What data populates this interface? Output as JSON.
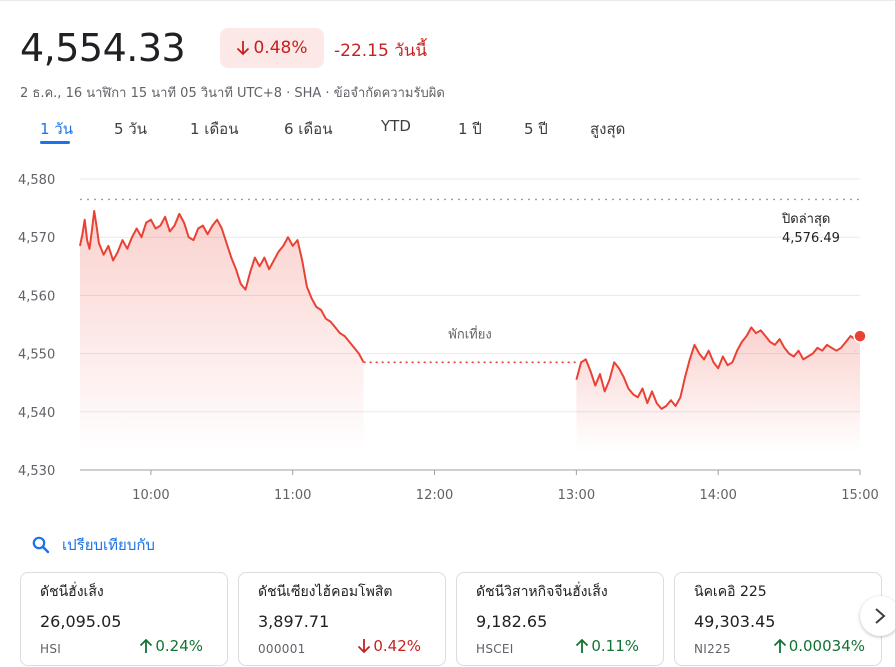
{
  "header": {
    "price": "4,554.33",
    "change_pct": "0.48%",
    "change_abs": "-22.15 วันนี้",
    "subline": "2 ธ.ค., 16 นาฬิกา 15 นาที 05 วินาที UTC+8 · SHA · ข้อจำกัดความรับผิด"
  },
  "tabs": [
    {
      "label": "1 วัน",
      "active": true
    },
    {
      "label": "5 วัน"
    },
    {
      "label": "1 เดือน"
    },
    {
      "label": "6 เดือน"
    },
    {
      "label": "YTD"
    },
    {
      "label": "1 ปี"
    },
    {
      "label": "5 ปี"
    },
    {
      "label": "สูงสุด"
    }
  ],
  "chart_data": {
    "type": "line",
    "ylim": [
      4530,
      4580
    ],
    "yticks": [
      "4,580",
      "4,570",
      "4,560",
      "4,550",
      "4,540",
      "4,530"
    ],
    "ytick_values": [
      4580,
      4570,
      4560,
      4550,
      4540,
      4530
    ],
    "xlim": [
      "09:30",
      "15:00"
    ],
    "xticks": [
      "10:00",
      "11:00",
      "12:00",
      "13:00",
      "14:00",
      "15:00"
    ],
    "prev_close_label": "ปิดล่าสุด",
    "prev_close_value": "4,576.49",
    "prev_close": 4576.49,
    "lunch_label": "พักเที่ยง",
    "line_color": "#e94235",
    "series": [
      {
        "segment": "morning",
        "points": [
          [
            "09:30",
            4568.5
          ],
          [
            "09:31",
            4570.5
          ],
          [
            "09:32",
            4573
          ],
          [
            "09:33",
            4569.5
          ],
          [
            "09:34",
            4568
          ],
          [
            "09:35",
            4571
          ],
          [
            "09:36",
            4574.5
          ],
          [
            "09:37",
            4572
          ],
          [
            "09:38",
            4569
          ],
          [
            "09:40",
            4567
          ],
          [
            "09:42",
            4568.5
          ],
          [
            "09:44",
            4566
          ],
          [
            "09:46",
            4567.5
          ],
          [
            "09:48",
            4569.5
          ],
          [
            "09:50",
            4568
          ],
          [
            "09:52",
            4570
          ],
          [
            "09:54",
            4571.5
          ],
          [
            "09:56",
            4570
          ],
          [
            "09:58",
            4572.5
          ],
          [
            "10:00",
            4573
          ],
          [
            "10:02",
            4571.5
          ],
          [
            "10:04",
            4572
          ],
          [
            "10:06",
            4573.5
          ],
          [
            "10:08",
            4571
          ],
          [
            "10:10",
            4572
          ],
          [
            "10:12",
            4574
          ],
          [
            "10:14",
            4572.5
          ],
          [
            "10:16",
            4570
          ],
          [
            "10:18",
            4569.5
          ],
          [
            "10:20",
            4571.5
          ],
          [
            "10:22",
            4572
          ],
          [
            "10:24",
            4570.5
          ],
          [
            "10:26",
            4572
          ],
          [
            "10:28",
            4573
          ],
          [
            "10:30",
            4571.5
          ],
          [
            "10:32",
            4569
          ],
          [
            "10:34",
            4566.5
          ],
          [
            "10:36",
            4564.5
          ],
          [
            "10:38",
            4562
          ],
          [
            "10:40",
            4561
          ],
          [
            "10:42",
            4564
          ],
          [
            "10:44",
            4566.5
          ],
          [
            "10:46",
            4565
          ],
          [
            "10:48",
            4566.5
          ],
          [
            "10:50",
            4564.5
          ],
          [
            "10:52",
            4566
          ],
          [
            "10:54",
            4567.5
          ],
          [
            "10:56",
            4568.5
          ],
          [
            "10:58",
            4570
          ],
          [
            "11:00",
            4568.5
          ],
          [
            "11:02",
            4569.5
          ],
          [
            "11:04",
            4566
          ],
          [
            "11:06",
            4561.5
          ],
          [
            "11:08",
            4559.5
          ],
          [
            "11:10",
            4558
          ],
          [
            "11:12",
            4557.5
          ],
          [
            "11:14",
            4556
          ],
          [
            "11:16",
            4555.5
          ],
          [
            "11:18",
            4554.5
          ],
          [
            "11:20",
            4553.5
          ],
          [
            "11:22",
            4553
          ],
          [
            "11:24",
            4552
          ],
          [
            "11:26",
            4551
          ],
          [
            "11:28",
            4550
          ],
          [
            "11:30",
            4548.5
          ]
        ]
      },
      {
        "segment": "afternoon",
        "points": [
          [
            "13:00",
            4545.5
          ],
          [
            "13:02",
            4548.5
          ],
          [
            "13:04",
            4549
          ],
          [
            "13:06",
            4547
          ],
          [
            "13:08",
            4544.5
          ],
          [
            "13:10",
            4546.5
          ],
          [
            "13:12",
            4543.5
          ],
          [
            "13:14",
            4545.5
          ],
          [
            "13:16",
            4548.5
          ],
          [
            "13:18",
            4547.5
          ],
          [
            "13:20",
            4546
          ],
          [
            "13:22",
            4544
          ],
          [
            "13:24",
            4543
          ],
          [
            "13:26",
            4542.5
          ],
          [
            "13:28",
            4544
          ],
          [
            "13:30",
            4541.5
          ],
          [
            "13:32",
            4543.5
          ],
          [
            "13:34",
            4541.5
          ],
          [
            "13:36",
            4540.5
          ],
          [
            "13:38",
            4541
          ],
          [
            "13:40",
            4542
          ],
          [
            "13:42",
            4541
          ],
          [
            "13:44",
            4542.5
          ],
          [
            "13:46",
            4546
          ],
          [
            "13:48",
            4549
          ],
          [
            "13:50",
            4551.5
          ],
          [
            "13:52",
            4550
          ],
          [
            "13:54",
            4549
          ],
          [
            "13:56",
            4550.5
          ],
          [
            "13:58",
            4548.5
          ],
          [
            "14:00",
            4547.5
          ],
          [
            "14:02",
            4549.5
          ],
          [
            "14:04",
            4548
          ],
          [
            "14:06",
            4548.5
          ],
          [
            "14:08",
            4550.5
          ],
          [
            "14:10",
            4552
          ],
          [
            "14:12",
            4553
          ],
          [
            "14:14",
            4554.5
          ],
          [
            "14:16",
            4553.5
          ],
          [
            "14:18",
            4554
          ],
          [
            "14:20",
            4553
          ],
          [
            "14:22",
            4552
          ],
          [
            "14:24",
            4551.5
          ],
          [
            "14:26",
            4552.5
          ],
          [
            "14:28",
            4551
          ],
          [
            "14:30",
            4550
          ],
          [
            "14:32",
            4549.5
          ],
          [
            "14:34",
            4550.5
          ],
          [
            "14:36",
            4549
          ],
          [
            "14:38",
            4549.5
          ],
          [
            "14:40",
            4550
          ],
          [
            "14:42",
            4551
          ],
          [
            "14:44",
            4550.5
          ],
          [
            "14:46",
            4551.5
          ],
          [
            "14:48",
            4551
          ],
          [
            "14:50",
            4550.5
          ],
          [
            "14:52",
            4551
          ],
          [
            "14:54",
            4552
          ],
          [
            "14:56",
            4553
          ],
          [
            "14:58",
            4552.5
          ],
          [
            "15:00",
            4553
          ]
        ]
      }
    ]
  },
  "compare": {
    "label": "เปรียบเทียบกับ"
  },
  "cards": [
    {
      "name": "ดัชนีฮั่งเส็ง",
      "value": "26,095.05",
      "code": "HSI",
      "change": "0.24%",
      "direction": "up"
    },
    {
      "name": "ดัชนีเซียงไฮ้คอมโพสิต",
      "value": "3,897.71",
      "code": "000001",
      "change": "0.42%",
      "direction": "down"
    },
    {
      "name": "ดัชนีวิสาหกิจจีนฮั่งเส็ง",
      "value": "9,182.65",
      "code": "HSCEI",
      "change": "0.11%",
      "direction": "up"
    },
    {
      "name": "นิคเคอิ 225",
      "value": "49,303.45",
      "code": "NI225",
      "change": "0.00034%",
      "direction": "up"
    }
  ]
}
